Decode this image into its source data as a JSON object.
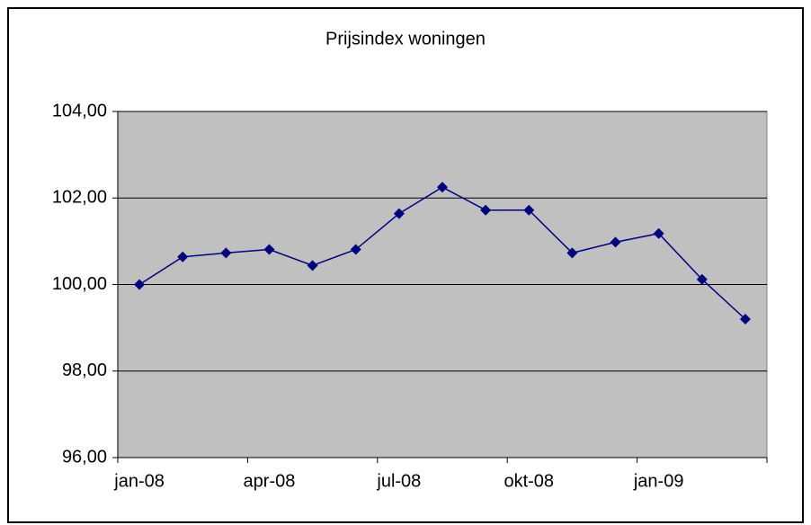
{
  "chart_data": {
    "type": "line",
    "title": "Prijsindex woningen",
    "categories": [
      "jan-08",
      null,
      null,
      "apr-08",
      null,
      null,
      "jul-08",
      null,
      null,
      "okt-08",
      null,
      null,
      "jan-09",
      null,
      null
    ],
    "series": [
      {
        "name": "Prijsindex woningen",
        "color": "#000080",
        "values": [
          100.0,
          100.64,
          100.73,
          100.81,
          100.44,
          100.81,
          101.64,
          102.25,
          101.72,
          101.72,
          100.73,
          100.98,
          101.18,
          100.12,
          99.2
        ]
      }
    ],
    "ylim": [
      96,
      104
    ],
    "yticks": [
      {
        "value": 96,
        "label": "96,00"
      },
      {
        "value": 98,
        "label": "98,00"
      },
      {
        "value": 100,
        "label": "100,00"
      },
      {
        "value": 102,
        "label": "102,00"
      },
      {
        "value": 104,
        "label": "104,00"
      }
    ],
    "grid": true,
    "plot_background": "#c0c0c0"
  }
}
